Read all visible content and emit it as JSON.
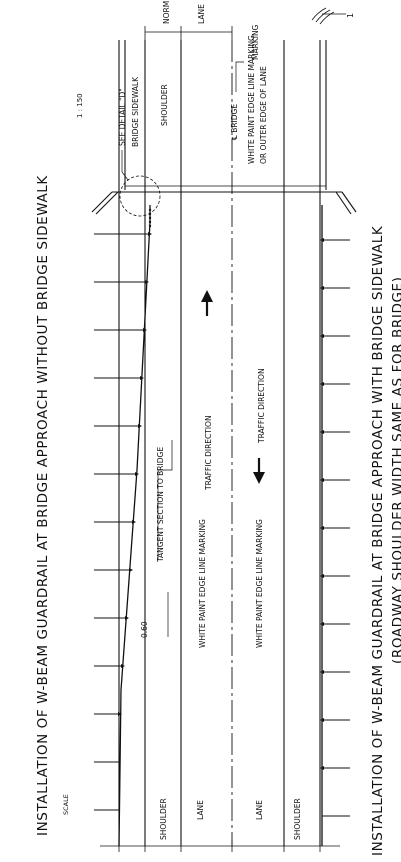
{
  "titles": {
    "top": "INSTALLATION OF W-BEAM GUARDRAIL AT BRIDGE APPROACH WITHOUT BRIDGE SIDEWALK",
    "top_scale_word": "SCALE",
    "top_scale_value": "1 : 150",
    "bottom_line1": "INSTALLATION OF W-BEAM GUARDRAIL AT BRIDGE APPROACH WITH  BRIDGE SIDEWALK",
    "bottom_line2": "(ROADWAY SHOULDER WIDTH SAME AS FOR BRIDGE)"
  },
  "labels": {
    "norm": "NORM",
    "lane_top": "LANE",
    "marking_top": "MARKING",
    "see_detail": "SEE DETAIL \"D\"",
    "bridge_sidewalk": "BRIDGE SIDEWALK",
    "shoulder_bridge": "SHOULDER",
    "cl_bridge": "℄ BRIDGE",
    "white_paint_1": "WHITE PAINT EDGE LINE MARKING",
    "white_paint_2": "OR OUTER EDGE OF LANE",
    "tangent_section": "TANGENT SECTION TO BRIDGE",
    "offset": "0.60",
    "traffic_dir_up": "TRAFFIC DIRECTION",
    "traffic_dir_down": "TRAFFIC DIRECTION",
    "edge_line_1": "WHITE PAINT EDGE LINE MARKING",
    "edge_line_2": "WHITE PAINT EDGE LINE MARKING",
    "shoulder_left_1": "SHOULDER",
    "lane_left_1": "LANE",
    "lane_left_2": "LANE",
    "shoulder_left_2": "SHOULDER",
    "corner_mark": "1"
  },
  "colors": {
    "ink": "#111111",
    "paper": "#ffffff"
  }
}
